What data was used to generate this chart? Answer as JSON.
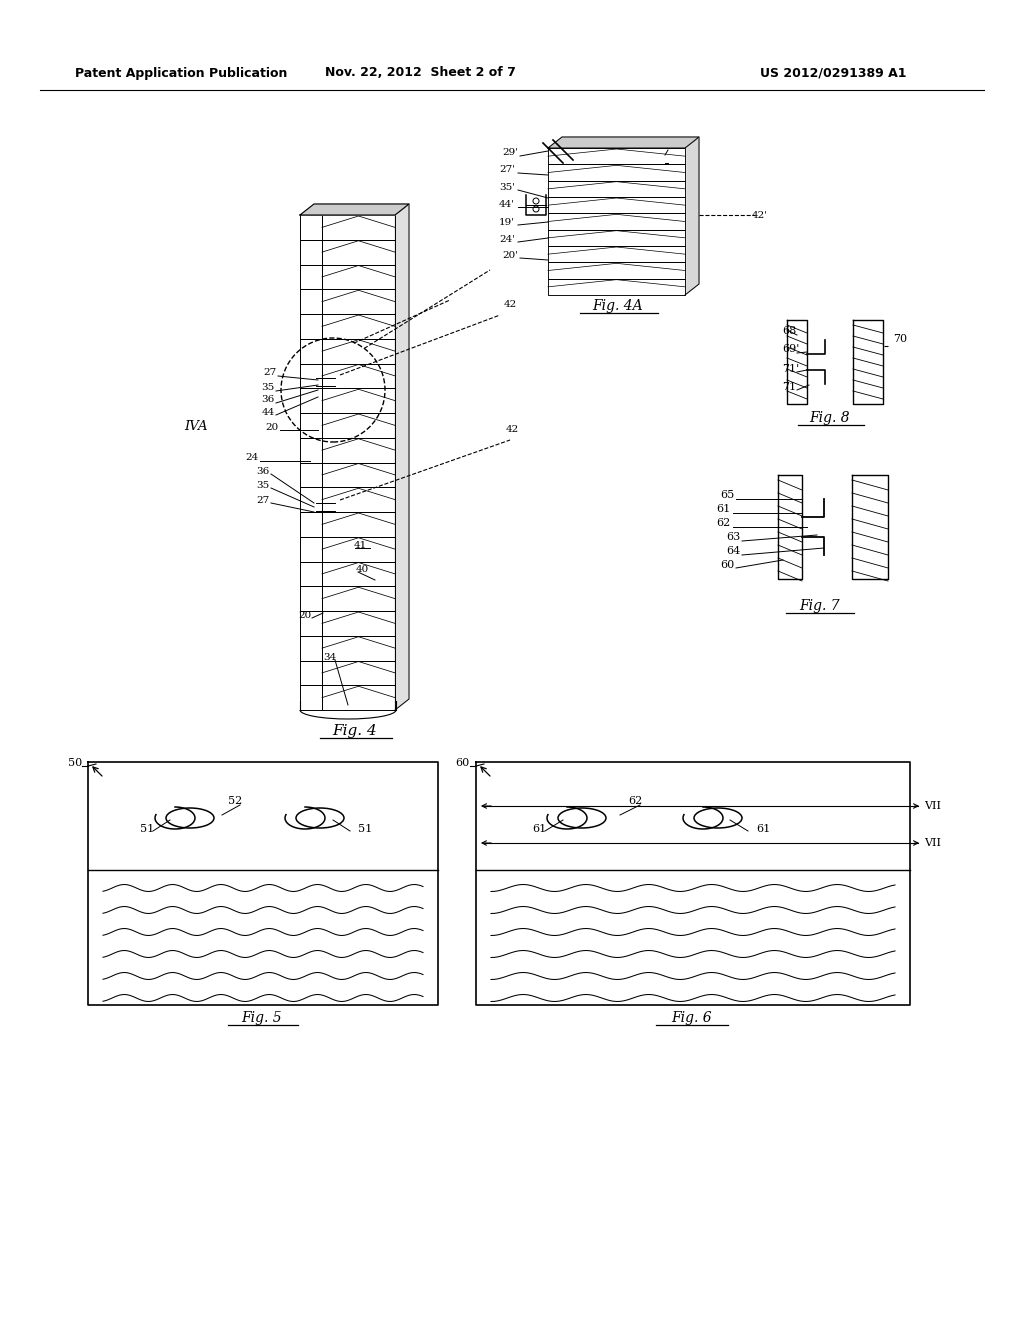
{
  "title_left": "Patent Application Publication",
  "title_center": "Nov. 22, 2012  Sheet 2 of 7",
  "title_right": "US 2012/0291389 A1",
  "bg_color": "#ffffff",
  "line_color": "#000000",
  "fig4_caption": "Fig. 4",
  "fig4a_caption": "Fig. 4A",
  "fig5_caption": "Fig. 5",
  "fig6_caption": "Fig. 6",
  "fig7_caption": "Fig. 7",
  "fig8_caption": "Fig. 8"
}
